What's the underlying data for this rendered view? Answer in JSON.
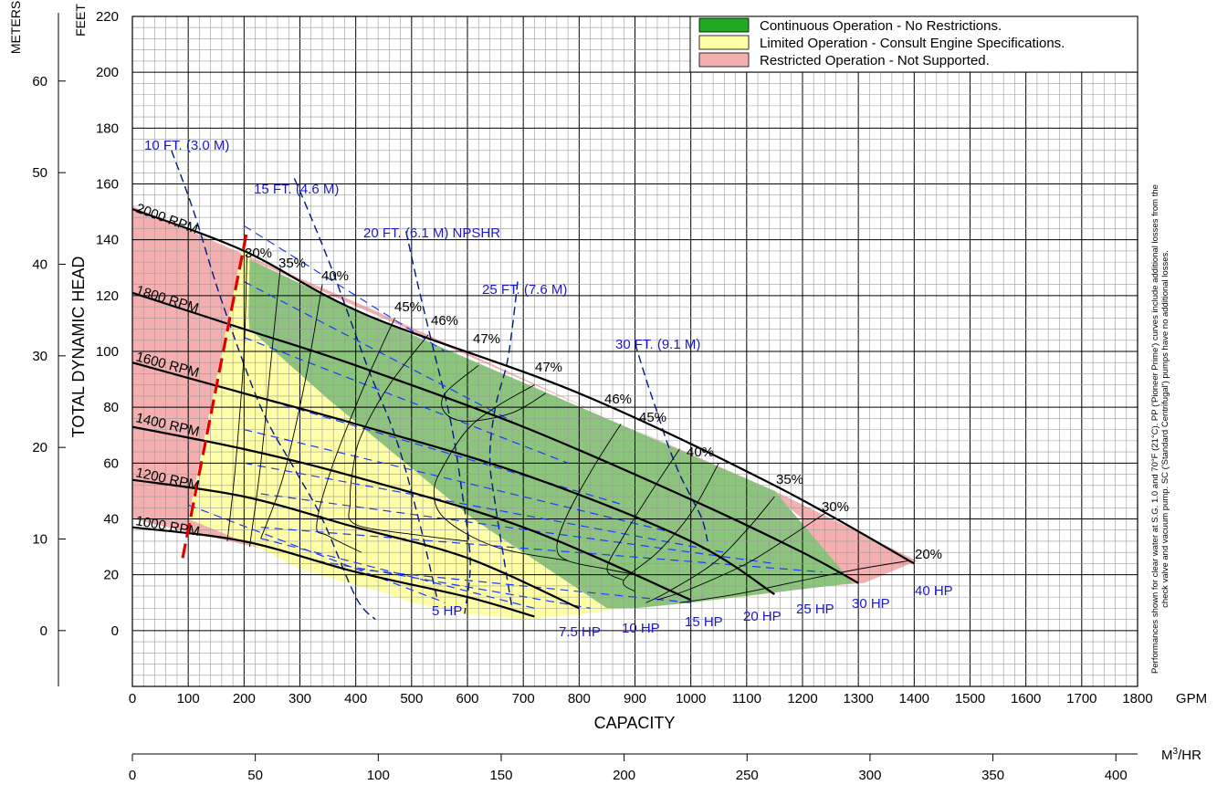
{
  "chart_data": {
    "type": "line",
    "x": {
      "label": "CAPACITY",
      "unit": "GPM",
      "min": 0,
      "max": 1800,
      "ticks": [
        0,
        100,
        200,
        300,
        400,
        500,
        600,
        700,
        800,
        900,
        1000,
        1100,
        1200,
        1300,
        1400,
        1500,
        1600,
        1700,
        1800
      ]
    },
    "x2": {
      "unit": "M3/HR",
      "unit_base": "M",
      "unit_sup": "3",
      "unit_tail": "/HR",
      "ticks": [
        0,
        50,
        100,
        150,
        200,
        250,
        300,
        350,
        400
      ]
    },
    "y": {
      "label": "TOTAL DYNAMIC HEAD",
      "unit": "FEET",
      "min": -20,
      "max": 220,
      "ticks": [
        0,
        20,
        40,
        60,
        80,
        100,
        120,
        140,
        160,
        180,
        200,
        220
      ]
    },
    "y2": {
      "unit": "METERS",
      "ticks": [
        0,
        10,
        20,
        30,
        40,
        50,
        60
      ]
    },
    "legend": {
      "position": "top-right",
      "items": [
        {
          "label": "Continuous Operation - No Restrictions.",
          "color": "#22aa22"
        },
        {
          "label": "Limited Operation - Consult Engine Specifications.",
          "color": "#ffffa8"
        },
        {
          "label": "Restricted Operation - Not Supported.",
          "color": "#f4b0b0"
        }
      ]
    },
    "regions": {
      "restricted": [
        [
          0,
          152
        ],
        [
          0,
          40
        ],
        [
          90,
          36
        ],
        [
          235,
          30
        ],
        [
          280,
          25
        ],
        [
          100,
          38
        ],
        [
          140,
          85
        ],
        [
          205,
          136
        ],
        [
          208,
          133
        ],
        [
          420,
          113
        ],
        [
          1150,
          50
        ],
        [
          1400,
          25
        ],
        [
          1300,
          18
        ],
        [
          1180,
          14
        ],
        [
          1290,
          18
        ]
      ],
      "restricted_main": [
        [
          0,
          152
        ],
        [
          0,
          40
        ],
        [
          240,
          29
        ],
        [
          100,
          40
        ],
        [
          200,
          140
        ],
        [
          210,
          133
        ],
        [
          1150,
          50
        ],
        [
          1405,
          25
        ],
        [
          1310,
          17
        ],
        [
          1180,
          15
        ],
        [
          1200,
          40
        ],
        [
          1140,
          50
        ],
        [
          430,
          115
        ]
      ],
      "green": [
        [
          210,
          133
        ],
        [
          420,
          113
        ],
        [
          1150,
          50
        ],
        [
          1290,
          17
        ],
        [
          1000,
          10
        ],
        [
          900,
          8
        ],
        [
          850,
          8
        ],
        [
          610,
          40
        ],
        [
          350,
          83
        ],
        [
          210,
          108
        ],
        [
          208,
          113
        ]
      ],
      "limited": [
        [
          200,
          140
        ],
        [
          210,
          133
        ],
        [
          208,
          113
        ],
        [
          210,
          108
        ],
        [
          350,
          83
        ],
        [
          610,
          40
        ],
        [
          850,
          8
        ],
        [
          1100,
          12
        ],
        [
          1180,
          15
        ],
        [
          1000,
          12
        ],
        [
          880,
          8
        ],
        [
          810,
          6
        ],
        [
          700,
          4
        ],
        [
          600,
          6
        ],
        [
          500,
          10
        ],
        [
          460,
          13
        ],
        [
          300,
          22
        ],
        [
          235,
          29
        ],
        [
          100,
          40
        ]
      ]
    },
    "series": [
      {
        "name": "2000 RPM",
        "x": [
          0,
          200,
          420,
          800,
          1150,
          1400
        ],
        "y": [
          151,
          136,
          113,
          85,
          52,
          24
        ]
      },
      {
        "name": "1800 RPM",
        "x": [
          0,
          200,
          400,
          700,
          1000,
          1200,
          1300
        ],
        "y": [
          121,
          108,
          95,
          73,
          47,
          28,
          17
        ]
      },
      {
        "name": "1600 RPM",
        "x": [
          0,
          200,
          400,
          700,
          1000,
          1150
        ],
        "y": [
          96,
          85,
          74,
          56,
          32,
          13
        ]
      },
      {
        "name": "1400 RPM",
        "x": [
          0,
          200,
          400,
          700,
          1000
        ],
        "y": [
          73,
          65,
          55,
          37,
          11
        ]
      },
      {
        "name": "1200 RPM",
        "x": [
          0,
          200,
          400,
          600,
          800
        ],
        "y": [
          54,
          48,
          37,
          26,
          8
        ]
      },
      {
        "name": "1000 RPM",
        "x": [
          0,
          200,
          400,
          600,
          720
        ],
        "y": [
          37,
          32,
          21,
          12,
          5
        ]
      }
    ],
    "max_suction_line": {
      "x": [
        90,
        205
      ],
      "y": [
        26,
        143
      ]
    },
    "efficiency_labels": [
      "30%",
      "35%",
      "40%",
      "45%",
      "46%",
      "47%",
      "47%",
      "46%",
      "45%",
      "40%",
      "35%",
      "30%",
      "20%"
    ],
    "npshr_labels": [
      "10 FT. (3.0 M)",
      "15 FT. (4.6 M)",
      "20 FT. (6.1 M) NPSHR",
      "25 FT. (7.6 M)",
      "30 FT. (9.1 M)"
    ],
    "hp_labels": [
      "5 HP",
      "7.5 HP",
      "10 HP",
      "15 HP",
      "20 HP",
      "25 HP",
      "30 HP",
      "40 HP"
    ]
  },
  "note": "Performances shown for clear water at S.G. 1.0 and 70°F (21°C). PP ('Pioneer Prime') curves include additional losses from the check valve and vacuum pump. SC ('Standard Centrifugal') pumps have no additional losses."
}
